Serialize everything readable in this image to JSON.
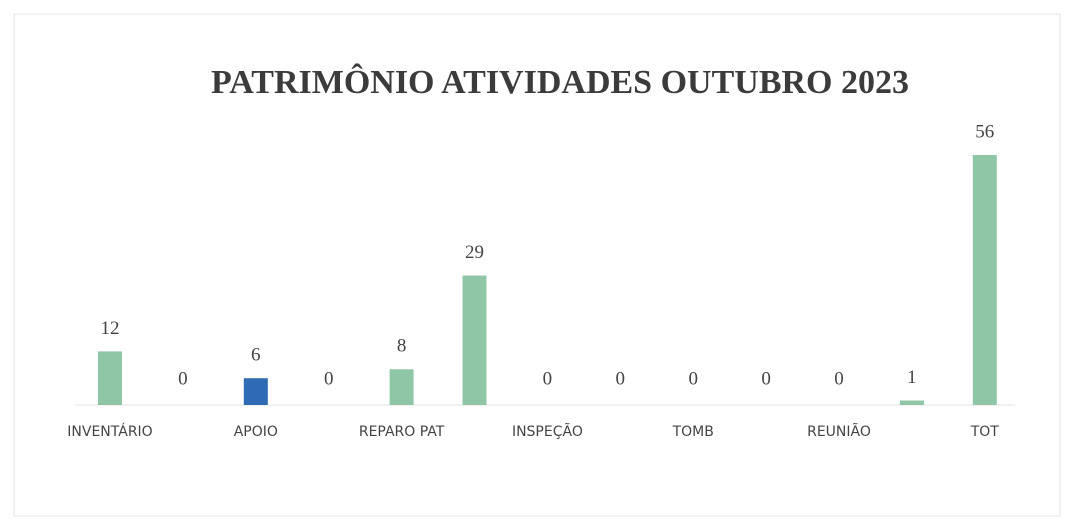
{
  "chart_data": {
    "type": "bar",
    "title": "PATRIMÔNIO ATIVIDADES OUTUBRO 2023",
    "categories": [
      "INVENTÁRIO",
      null,
      "APOIO",
      null,
      "REPARO PAT",
      null,
      "INSPEÇÃO",
      null,
      "TOMB",
      null,
      "REUNIÃO",
      null,
      "TOT"
    ],
    "values": [
      12,
      0,
      6,
      0,
      8,
      29,
      0,
      0,
      0,
      0,
      0,
      1,
      56
    ],
    "colors": [
      "#8ec6a6",
      "#8ec6a6",
      "#2e6bb4",
      "#8ec6a6",
      "#8ec6a6",
      "#8ec6a6",
      "#8ec6a6",
      "#8ec6a6",
      "#8ec6a6",
      "#8ec6a6",
      "#8ec6a6",
      "#8ec6a6",
      "#8ec6a6"
    ]
  }
}
